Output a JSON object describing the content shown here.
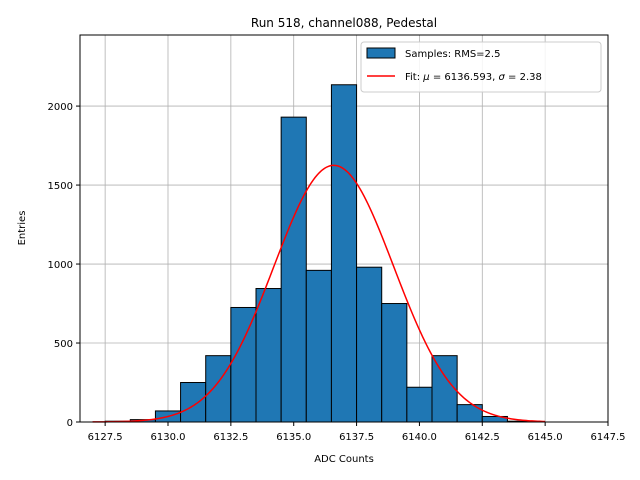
{
  "chart_data": {
    "type": "bar",
    "title": "Run 518, channel088, Pedestal",
    "xlabel": "ADC Counts",
    "ylabel": "Entries",
    "xlim": [
      6126.5,
      6147.5
    ],
    "ylim": [
      0,
      2450
    ],
    "grid": true,
    "legend_position": "top-right",
    "x_ticks": [
      6127.5,
      6130.0,
      6132.5,
      6135.0,
      6137.5,
      6140.0,
      6142.5,
      6145.0,
      6147.5
    ],
    "x_tick_labels": [
      "6127.5",
      "6130.0",
      "6132.5",
      "6135.0",
      "6137.5",
      "6140.0",
      "6142.5",
      "6145.0",
      "6147.5"
    ],
    "y_ticks": [
      0,
      500,
      1000,
      1500,
      2000
    ],
    "y_tick_labels": [
      "0",
      "500",
      "1000",
      "1500",
      "2000"
    ],
    "bin_width": 1,
    "bins": [
      {
        "x": 6128,
        "value": 5
      },
      {
        "x": 6129,
        "value": 15
      },
      {
        "x": 6130,
        "value": 70
      },
      {
        "x": 6131,
        "value": 250
      },
      {
        "x": 6132,
        "value": 420
      },
      {
        "x": 6133,
        "value": 725
      },
      {
        "x": 6134,
        "value": 845
      },
      {
        "x": 6135,
        "value": 1930
      },
      {
        "x": 6136,
        "value": 960
      },
      {
        "x": 6137,
        "value": 2135
      },
      {
        "x": 6138,
        "value": 980
      },
      {
        "x": 6139,
        "value": 750
      },
      {
        "x": 6140,
        "value": 220
      },
      {
        "x": 6141,
        "value": 420
      },
      {
        "x": 6142,
        "value": 110
      },
      {
        "x": 6143,
        "value": 35
      },
      {
        "x": 6144,
        "value": 5
      }
    ],
    "fit": {
      "mu": 6136.593,
      "sigma": 2.38,
      "peak": 1625,
      "x_start": 6127.0,
      "x_end": 6145.0
    },
    "series": [
      {
        "name": "Samples: RMS=2.5",
        "kind": "histogram",
        "color": "#1f77b4",
        "edge_color": "#000000"
      },
      {
        "name": "Fit: μ = 6136.593, σ = 2.38",
        "kind": "line",
        "color": "#ff0000"
      }
    ]
  },
  "colors": {
    "bar": "#1f77b4",
    "bar_edge": "#000000",
    "fit_line": "#ff0000",
    "grid": "#b0b0b0"
  }
}
